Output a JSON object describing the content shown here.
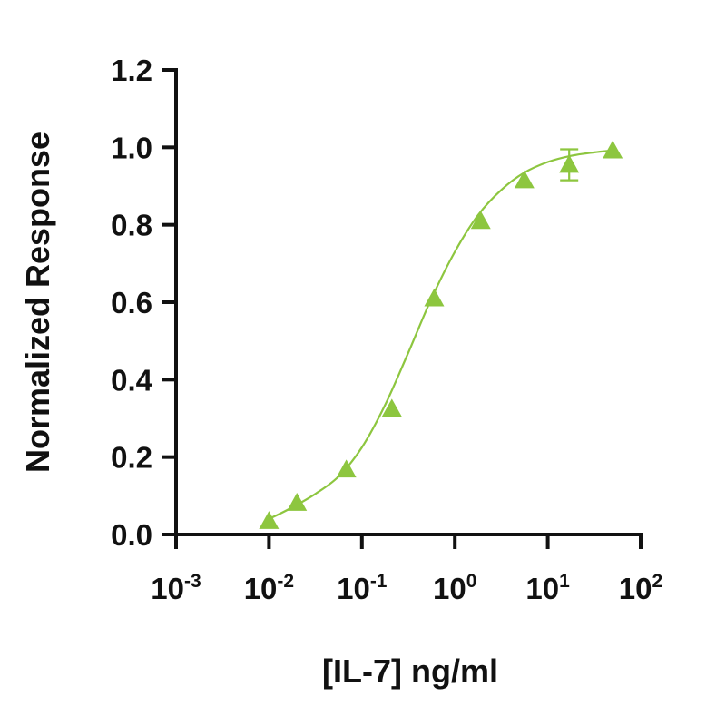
{
  "chart_data": {
    "type": "scatter",
    "title": "",
    "xlabel": "[IL-7] ng/ml",
    "ylabel": "Normalized Response",
    "x_scale": "log",
    "xlim": [
      0.001,
      100
    ],
    "ylim": [
      0,
      1.2
    ],
    "x_ticks": [
      {
        "base": "10",
        "exp": "-3"
      },
      {
        "base": "10",
        "exp": "-2"
      },
      {
        "base": "10",
        "exp": "-1"
      },
      {
        "base": "10",
        "exp": "0"
      },
      {
        "base": "10",
        "exp": "1"
      },
      {
        "base": "10",
        "exp": "2"
      }
    ],
    "y_ticks": [
      "0.0",
      "0.2",
      "0.4",
      "0.6",
      "0.8",
      "1.0",
      "1.2"
    ],
    "grid": false,
    "legend": "none",
    "colors": {
      "series": "#8dc63f",
      "axis": "#111111"
    },
    "marker": "triangle",
    "fit": "sigmoidal (4PL) curve",
    "series": [
      {
        "x": [
          0.01,
          0.02,
          0.068,
          0.21,
          0.6,
          1.9,
          5.6,
          17,
          50
        ],
        "y": [
          0.035,
          0.082,
          0.168,
          0.325,
          0.61,
          0.81,
          0.915,
          0.955,
          0.992
        ],
        "error": [
          0,
          0,
          0,
          0,
          0,
          0,
          0,
          0.04,
          0
        ]
      }
    ],
    "curve": [
      {
        "x": 0.01,
        "y": 0.04
      },
      {
        "x": 0.0178,
        "y": 0.07
      },
      {
        "x": 0.0316,
        "y": 0.105
      },
      {
        "x": 0.0562,
        "y": 0.15
      },
      {
        "x": 0.1,
        "y": 0.225
      },
      {
        "x": 0.178,
        "y": 0.335
      },
      {
        "x": 0.316,
        "y": 0.47
      },
      {
        "x": 0.562,
        "y": 0.61
      },
      {
        "x": 1.0,
        "y": 0.73
      },
      {
        "x": 1.78,
        "y": 0.825
      },
      {
        "x": 3.16,
        "y": 0.89
      },
      {
        "x": 5.62,
        "y": 0.935
      },
      {
        "x": 10,
        "y": 0.962
      },
      {
        "x": 17.8,
        "y": 0.978
      },
      {
        "x": 31.6,
        "y": 0.987
      },
      {
        "x": 50,
        "y": 0.992
      }
    ]
  }
}
